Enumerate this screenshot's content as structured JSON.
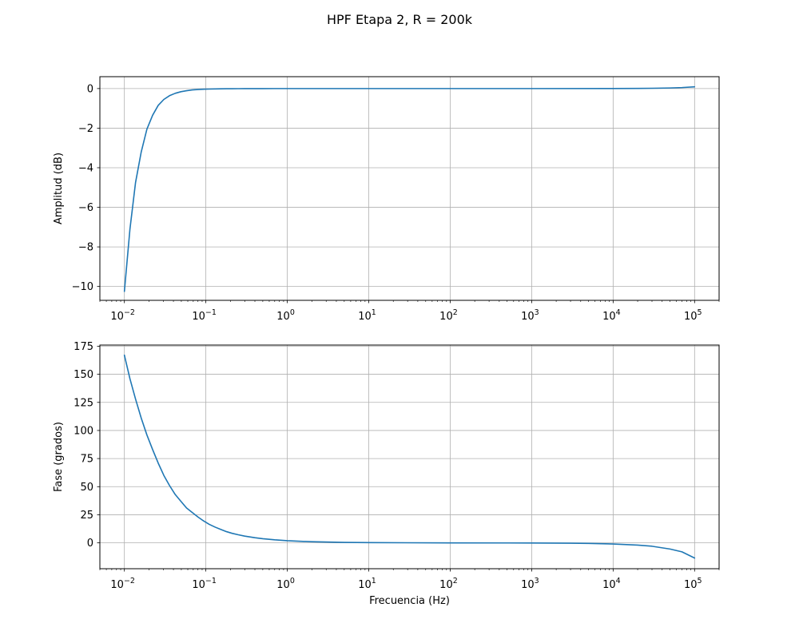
{
  "figure": {
    "title": "HPF Etapa 2, R = 200k"
  },
  "colors": {
    "series": "#1f77b4",
    "grid": "#b0b0b0",
    "background": "#ffffff",
    "axis": "#000000"
  },
  "chart_data": [
    {
      "type": "line",
      "title": "",
      "xlabel": "",
      "ylabel": "Amplitud (dB)",
      "xscale": "log",
      "xlim": [
        0.005,
        200000
      ],
      "ylim": [
        -10.7,
        0.6
      ],
      "grid": true,
      "x_ticks": [
        0.01,
        0.1,
        1,
        10,
        100,
        1000,
        10000,
        100000
      ],
      "x_tick_labels": [
        {
          "base": "10",
          "exp": "−2"
        },
        {
          "base": "10",
          "exp": "−1"
        },
        {
          "base": "10",
          "exp": "0"
        },
        {
          "base": "10",
          "exp": "1"
        },
        {
          "base": "10",
          "exp": "2"
        },
        {
          "base": "10",
          "exp": "3"
        },
        {
          "base": "10",
          "exp": "4"
        },
        {
          "base": "10",
          "exp": "5"
        }
      ],
      "y_ticks": [
        0,
        -2,
        -4,
        -6,
        -8,
        -10
      ],
      "y_tick_labels": [
        "0",
        "−2",
        "−4",
        "−6",
        "−8",
        "−10"
      ],
      "series": [
        {
          "x": [
            0.01,
            0.0117,
            0.0137,
            0.0161,
            0.0189,
            0.0222,
            0.026,
            0.0305,
            0.0358,
            0.0421,
            0.0494,
            0.058,
            0.0681,
            0.08,
            0.0939,
            0.11,
            0.13,
            0.152,
            0.179,
            0.21,
            0.25,
            0.3,
            0.4,
            0.5,
            0.7,
            1,
            10,
            100,
            1000,
            10000,
            20000,
            30000,
            50000,
            70000,
            100000
          ],
          "y": [
            -10.25,
            -7.1,
            -4.75,
            -3.2,
            -2.05,
            -1.35,
            -0.85,
            -0.55,
            -0.36,
            -0.24,
            -0.16,
            -0.11,
            -0.07,
            -0.05,
            -0.035,
            -0.025,
            -0.018,
            -0.013,
            -0.009,
            -0.007,
            -0.005,
            -0.003,
            -0.002,
            -0.001,
            -0.0005,
            0,
            0,
            0,
            0,
            0.003,
            0.008,
            0.015,
            0.03,
            0.05,
            0.09
          ]
        }
      ]
    },
    {
      "type": "line",
      "title": "",
      "xlabel": "Frecuencia (Hz)",
      "ylabel": "Fase (grados)",
      "xscale": "log",
      "xlim": [
        0.005,
        200000
      ],
      "ylim": [
        -23,
        176
      ],
      "grid": true,
      "x_ticks": [
        0.01,
        0.1,
        1,
        10,
        100,
        1000,
        10000,
        100000
      ],
      "x_tick_labels": [
        {
          "base": "10",
          "exp": "−2"
        },
        {
          "base": "10",
          "exp": "−1"
        },
        {
          "base": "10",
          "exp": "0"
        },
        {
          "base": "10",
          "exp": "1"
        },
        {
          "base": "10",
          "exp": "2"
        },
        {
          "base": "10",
          "exp": "3"
        },
        {
          "base": "10",
          "exp": "4"
        },
        {
          "base": "10",
          "exp": "5"
        }
      ],
      "y_ticks": [
        175,
        150,
        125,
        100,
        75,
        50,
        25,
        0
      ],
      "y_tick_labels": [
        "175",
        "150",
        "125",
        "100",
        "75",
        "50",
        "25",
        "0"
      ],
      "series": [
        {
          "x": [
            0.01,
            0.0117,
            0.0137,
            0.0161,
            0.0189,
            0.0222,
            0.026,
            0.0305,
            0.0358,
            0.0421,
            0.0494,
            0.058,
            0.0681,
            0.08,
            0.0939,
            0.11,
            0.13,
            0.152,
            0.179,
            0.21,
            0.25,
            0.3,
            0.4,
            0.5,
            0.7,
            1,
            2,
            5,
            10,
            100,
            1000,
            3000,
            5000,
            10000,
            20000,
            30000,
            50000,
            70000,
            100000
          ],
          "y": [
            167,
            146,
            128,
            111,
            96,
            83,
            71,
            60,
            51,
            43,
            37,
            31,
            27,
            23,
            19.5,
            16.5,
            14,
            12,
            10,
            8.5,
            7.2,
            6,
            4.6,
            3.7,
            2.7,
            1.9,
            1,
            0.4,
            0.2,
            0,
            -0.1,
            -0.3,
            -0.5,
            -1,
            -2,
            -3,
            -5.5,
            -8,
            -13.5
          ]
        }
      ]
    }
  ]
}
